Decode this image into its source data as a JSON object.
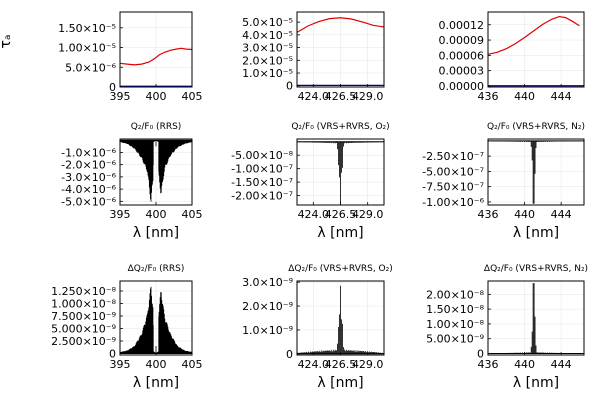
{
  "chart_data": [
    {
      "type": "line",
      "id": "p11",
      "title": "",
      "ylabel": "τₐ",
      "xlabel": "",
      "xlim": [
        395,
        405
      ],
      "ylim": [
        0,
        1.9e-05
      ],
      "xticks": [
        395,
        400,
        405
      ],
      "xticklabels": [
        "395",
        "400",
        "405"
      ],
      "yticks": [
        0,
        5e-06,
        1e-05,
        1.5e-05
      ],
      "yticklabels": [
        "0",
        "5.0×10⁻⁶",
        "1.00×10⁻⁵",
        "1.50×10⁻⁵"
      ],
      "series": [
        {
          "color": "#e00000",
          "x": [
            395,
            396,
            397,
            398,
            399,
            399.8,
            400.5,
            401.2,
            402,
            402.8,
            403.5,
            404.2,
            405
          ],
          "y": [
            6e-06,
            5.8e-06,
            5.6e-06,
            5.8e-06,
            6.3e-06,
            7.2e-06,
            8.2e-06,
            8.8e-06,
            9.3e-06,
            9.6e-06,
            9.8e-06,
            9.6e-06,
            9.5e-06
          ]
        },
        {
          "color": "#0000a0",
          "x": [
            395,
            405
          ],
          "y": [
            2e-07,
            2e-07
          ]
        }
      ]
    },
    {
      "type": "line",
      "id": "p12",
      "title": "",
      "ylabel": "",
      "xlabel": "",
      "xlim": [
        422.5,
        430.5
      ],
      "ylim": [
        -1e-06,
        5.8e-05
      ],
      "xticks": [
        424.0,
        426.5,
        429.0
      ],
      "xticklabels": [
        "424.0",
        "426.5",
        "429.0"
      ],
      "yticks": [
        0,
        1e-05,
        2e-05,
        3e-05,
        4e-05,
        5e-05
      ],
      "yticklabels": [
        "0",
        "1.0×10⁻⁵",
        "2.0×10⁻⁵",
        "3.0×10⁻⁵",
        "4.0×10⁻⁵",
        "5.0×10⁻⁵"
      ],
      "series": [
        {
          "color": "#e00000",
          "x": [
            422.5,
            423.5,
            424.5,
            425.5,
            426.5,
            427.5,
            428.5,
            429.5,
            430.5
          ],
          "y": [
            4.2e-05,
            4.7e-05,
            5.05e-05,
            5.28e-05,
            5.35e-05,
            5.25e-05,
            5.02e-05,
            4.75e-05,
            4.62e-05
          ]
        },
        {
          "color": "#0000a0",
          "x": [
            422.5,
            430.5
          ],
          "y": [
            3e-07,
            3e-07
          ]
        }
      ]
    },
    {
      "type": "line",
      "id": "p13",
      "title": "",
      "ylabel": "",
      "xlabel": "",
      "xlim": [
        436,
        446.5
      ],
      "ylim": [
        -2e-06,
        0.000145
      ],
      "xticks": [
        436,
        440,
        444
      ],
      "xticklabels": [
        "436",
        "440",
        "444"
      ],
      "yticks": [
        0,
        3e-05,
        6e-05,
        9e-05,
        0.00012
      ],
      "yticklabels": [
        "0.00000",
        "0.00003",
        "0.00006",
        "0.00009",
        "0.00012"
      ],
      "series": [
        {
          "color": "#e00000",
          "x": [
            436,
            437,
            438,
            439,
            440,
            441,
            442,
            443,
            443.8,
            444.5,
            445.2,
            446
          ],
          "y": [
            6.2e-05,
            6.6e-05,
            7.3e-05,
            8.3e-05,
            9.5e-05,
            0.000108,
            0.000121,
            0.000131,
            0.000136,
            0.000134,
            0.000127,
            0.000118
          ]
        },
        {
          "color": "#0000a0",
          "x": [
            436,
            446.5
          ],
          "y": [
            5e-07,
            5e-07
          ]
        }
      ]
    },
    {
      "type": "line",
      "id": "p21",
      "title": "Q₂/F₀ (RRS)",
      "ylabel": "",
      "xlabel": "λ [nm]",
      "xlim": [
        395,
        405
      ],
      "ylim": [
        -5.3e-06,
        1e-07
      ],
      "xticks": [
        395,
        400,
        405
      ],
      "xticklabels": [
        "395",
        "400",
        "405"
      ],
      "yticks": [
        -1e-06,
        -2e-06,
        -3e-06,
        -4e-06,
        -5e-06
      ],
      "yticklabels": [
        "-1.0×10⁻⁶",
        "-2.0×10⁻⁶",
        "-3.0×10⁻⁶",
        "-4.0×10⁻⁶",
        "-5.0×10⁻⁶"
      ],
      "series": [
        {
          "color": "#000000",
          "style": "spikes",
          "x_range": [
            395,
            405
          ],
          "n": 260,
          "baseline": 0,
          "center": 400,
          "dip_halfwidth": 0.35,
          "dip_floor": 0.05,
          "env": [
            [
              395,
              -1.5e-07
            ],
            [
              396,
              -3e-07
            ],
            [
              397,
              -7e-07
            ],
            [
              398,
              -1.5e-06
            ],
            [
              398.8,
              -2.6e-06
            ],
            [
              399.3,
              -5.2e-06
            ],
            [
              399.8,
              -2e-06
            ],
            [
              400,
              -5e-07
            ],
            [
              400.2,
              -2e-06
            ],
            [
              400.7,
              -4.6e-06
            ],
            [
              401.2,
              -2.4e-06
            ],
            [
              402,
              -1.3e-06
            ],
            [
              403,
              -6e-07
            ],
            [
              404,
              -3e-07
            ],
            [
              405,
              -1.5e-07
            ]
          ]
        }
      ]
    },
    {
      "type": "line",
      "id": "p22",
      "title": "Q₂/F₀ (VRS+RVRS, O₂)",
      "ylabel": "",
      "xlabel": "λ [nm]",
      "xlim": [
        422.5,
        430.5
      ],
      "ylim": [
        -2.35e-07,
        1e-08
      ],
      "xticks": [
        424.0,
        426.5,
        429.0
      ],
      "xticklabels": [
        "424.0",
        "426.5",
        "429.0"
      ],
      "yticks": [
        -5e-08,
        -1e-07,
        -1.5e-07,
        -2e-07
      ],
      "yticklabels": [
        "-5.00×10⁻⁸",
        "-1.00×10⁻⁷",
        "-1.50×10⁻⁷",
        "-2.00×10⁻⁷"
      ],
      "series": [
        {
          "color": "#000000",
          "style": "spikes",
          "x_range": [
            422.5,
            430.5
          ],
          "n": 90,
          "baseline": 0,
          "center": 426.5,
          "env": [
            [
              422.5,
              -2e-09
            ],
            [
              424.5,
              -4e-09
            ],
            [
              426.2,
              -6e-09
            ],
            [
              426.5,
              -2.32e-07
            ],
            [
              426.8,
              -6e-09
            ],
            [
              428.5,
              -4e-09
            ],
            [
              430.5,
              -2e-09
            ]
          ]
        }
      ]
    },
    {
      "type": "line",
      "id": "p23",
      "title": "Q₂/F₀ (VRS+RVRS, N₂)",
      "ylabel": "",
      "xlabel": "λ [nm]",
      "xlim": [
        436,
        446.5
      ],
      "ylim": [
        -1.05e-06,
        3e-08
      ],
      "xticks": [
        436,
        440,
        444
      ],
      "xticklabels": [
        "436",
        "440",
        "444"
      ],
      "yticks": [
        -2.5e-07,
        -5e-07,
        -7.5e-07,
        -1e-06
      ],
      "yticklabels": [
        "-2.50×10⁻⁷",
        "-5.00×10⁻⁷",
        "-7.50×10⁻⁷",
        "-1.00×10⁻⁶"
      ],
      "series": [
        {
          "color": "#000000",
          "style": "spikes",
          "x_range": [
            436,
            446.5
          ],
          "n": 100,
          "baseline": 0,
          "center": 441,
          "env": [
            [
              436,
              -5e-09
            ],
            [
              438,
              -1.2e-08
            ],
            [
              440.7,
              -2e-08
            ],
            [
              441,
              -1.03e-06
            ],
            [
              441.3,
              -2e-08
            ],
            [
              444,
              -1e-08
            ],
            [
              446.5,
              -5e-09
            ]
          ]
        }
      ]
    },
    {
      "type": "line",
      "id": "p31",
      "title": "ΔQ₂/F₀ (RRS)",
      "ylabel": "",
      "xlabel": "λ [nm]",
      "xlim": [
        395,
        405
      ],
      "ylim": [
        -3e-10,
        1.45e-08
      ],
      "xticks": [
        395,
        400,
        405
      ],
      "xticklabels": [
        "395",
        "400",
        "405"
      ],
      "yticks": [
        0,
        2.5e-09,
        5e-09,
        7.5e-09,
        1e-08,
        1.25e-08
      ],
      "yticklabels": [
        "0",
        "2.500×10⁻⁹",
        "5.000×10⁻⁹",
        "7.500×10⁻⁹",
        "1.000×10⁻⁸",
        "1.250×10⁻⁸"
      ],
      "series": [
        {
          "color": "#000000",
          "style": "spikes",
          "x_range": [
            395,
            405
          ],
          "n": 260,
          "baseline": 0,
          "center": 400,
          "dip_halfwidth": 0.35,
          "dip_floor": 0.05,
          "env": [
            [
              395,
              3e-10
            ],
            [
              396,
              6e-10
            ],
            [
              397,
              1.5e-09
            ],
            [
              398,
              4e-09
            ],
            [
              398.8,
              8e-09
            ],
            [
              399.3,
              1.38e-08
            ],
            [
              399.8,
              6e-09
            ],
            [
              400,
              1.5e-09
            ],
            [
              400.2,
              6e-09
            ],
            [
              400.7,
              1.3e-08
            ],
            [
              401.2,
              7.5e-09
            ],
            [
              402,
              4e-09
            ],
            [
              403,
              1.5e-09
            ],
            [
              404,
              6e-10
            ],
            [
              405,
              3e-10
            ]
          ]
        }
      ]
    },
    {
      "type": "line",
      "id": "p32",
      "title": "ΔQ₂/F₀ (VRS+RVRS, O₂)",
      "ylabel": "",
      "xlabel": "λ [nm]",
      "xlim": [
        422.5,
        430.5
      ],
      "ylim": [
        -5e-11,
        3.05e-09
      ],
      "xticks": [
        424.0,
        426.5,
        429.0
      ],
      "xticklabels": [
        "424.0",
        "426.5",
        "429.0"
      ],
      "yticks": [
        0,
        1e-09,
        2e-09,
        3e-09
      ],
      "yticklabels": [
        "0",
        "1.0×10⁻⁹",
        "2.0×10⁻⁹",
        "3.0×10⁻⁹"
      ],
      "series": [
        {
          "color": "#000000",
          "style": "spikes",
          "x_range": [
            422.5,
            430.5
          ],
          "n": 90,
          "baseline": 0,
          "center": 426.5,
          "env": [
            [
              422.5,
              4e-11
            ],
            [
              424.5,
              1.3e-10
            ],
            [
              426.2,
              1.8e-10
            ],
            [
              426.5,
              2.85e-09
            ],
            [
              426.8,
              1.8e-10
            ],
            [
              428.5,
              1.3e-10
            ],
            [
              430.5,
              4e-11
            ]
          ]
        }
      ]
    },
    {
      "type": "line",
      "id": "p33",
      "title": "ΔQ₂/F₀ (VRS+RVRS, N₂)",
      "ylabel": "",
      "xlabel": "λ [nm]",
      "xlim": [
        436,
        446.5
      ],
      "ylim": [
        -5e-10,
        2.45e-08
      ],
      "xticks": [
        436,
        440,
        444
      ],
      "xticklabels": [
        "436",
        "440",
        "444"
      ],
      "yticks": [
        0,
        5e-09,
        1e-08,
        1.5e-08,
        2e-08
      ],
      "yticklabels": [
        "0",
        "5.00×10⁻⁹",
        "1.00×10⁻⁸",
        "1.50×10⁻⁸",
        "2.00×10⁻⁸"
      ],
      "series": [
        {
          "color": "#000000",
          "style": "spikes",
          "x_range": [
            436,
            446.5
          ],
          "n": 100,
          "baseline": 0,
          "center": 441,
          "env": [
            [
              436,
              1e-10
            ],
            [
              438,
              2e-10
            ],
            [
              440.7,
              4e-10
            ],
            [
              441,
              2.38e-08
            ],
            [
              441.3,
              4e-10
            ],
            [
              444,
              2e-10
            ],
            [
              446.5,
              1e-10
            ]
          ]
        }
      ]
    }
  ]
}
